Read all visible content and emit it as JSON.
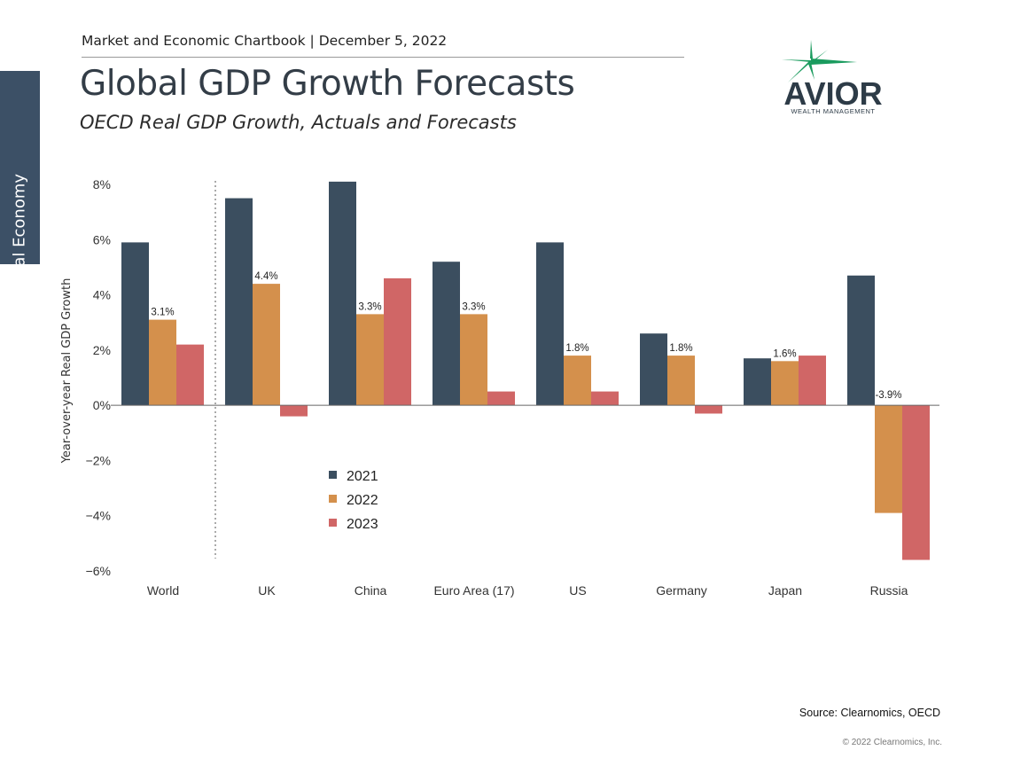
{
  "side_tab": {
    "label": "Global Economy"
  },
  "header": {
    "chartbook": "Market and Economic Chartbook | December 5, 2022",
    "title": "Global GDP Growth Forecasts",
    "subtitle": "OECD Real GDP Growth, Actuals and Forecasts"
  },
  "logo": {
    "name": "AVIOR",
    "tagline": "WEALTH MANAGEMENT"
  },
  "footer": {
    "source": "Source: Clearnomics, OECD",
    "copyright": "© 2022 Clearnomics, Inc."
  },
  "colors": {
    "s2021": "#3b4e5f",
    "s2022": "#d4904c",
    "s2023": "#d06666",
    "logo_star": "#1a9b5e",
    "logo_text": "#2d3b47"
  },
  "chart_data": {
    "type": "bar",
    "categories": [
      "World",
      "UK",
      "China",
      "Euro Area (17)",
      "US",
      "Germany",
      "Japan",
      "Russia"
    ],
    "series": [
      {
        "name": "2021",
        "values": [
          5.9,
          7.5,
          8.1,
          5.2,
          5.9,
          2.6,
          1.7,
          4.7
        ]
      },
      {
        "name": "2022",
        "values": [
          3.1,
          4.4,
          3.3,
          3.3,
          1.8,
          1.8,
          1.6,
          -3.9
        ]
      },
      {
        "name": "2023",
        "values": [
          2.2,
          -0.4,
          4.6,
          0.5,
          0.5,
          -0.3,
          1.8,
          -5.6
        ]
      }
    ],
    "data_labels": [
      "3.1%",
      "4.4%",
      "3.3%",
      "3.3%",
      "1.8%",
      "1.8%",
      "1.6%",
      "-3.9%"
    ],
    "yticks": [
      8,
      6,
      4,
      2,
      0,
      -2,
      -4,
      -6
    ],
    "ytick_labels": [
      "8%",
      "6%",
      "4%",
      "2%",
      "0%",
      "−2%",
      "−4%",
      "−6%"
    ],
    "ylim": [
      -6,
      8
    ],
    "ylabel": "Year-over-year Real GDP Growth",
    "xlabel": "",
    "legend_position": "lower-middle",
    "grid": false
  }
}
